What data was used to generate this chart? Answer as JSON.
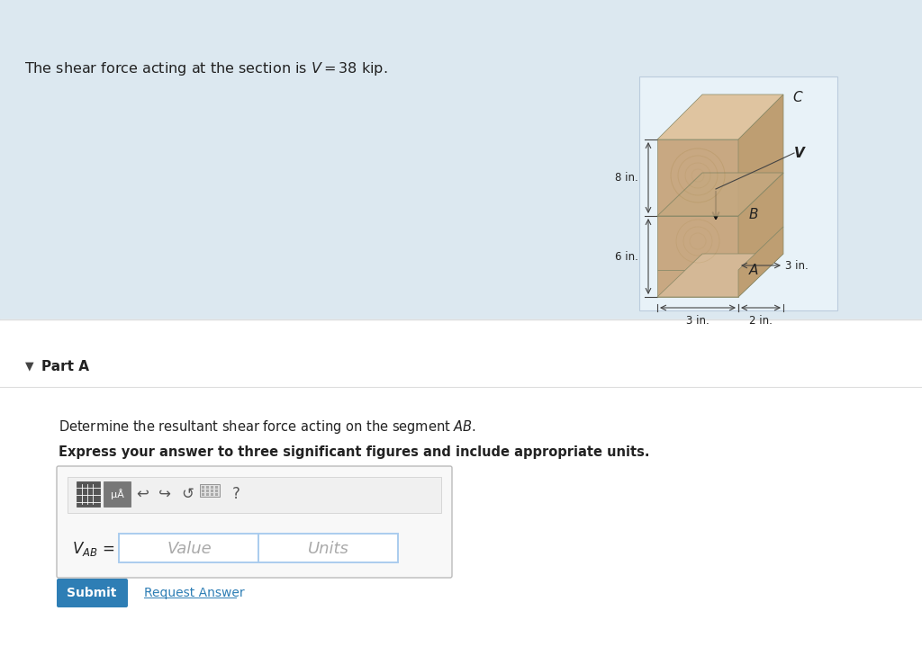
{
  "bg_top": "#dce8f0",
  "bg_bottom": "#ffffff",
  "title_text": "The shear force acting at the section is $V = 38$ kip.",
  "title_fontsize": 11.5,
  "part_a_label": "Part A",
  "part_a_fontsize": 11,
  "question_text": "Determine the resultant shear force acting on the segment $AB$.",
  "question_fontsize": 10.5,
  "bold_text": "Express your answer to three significant figures and include appropriate units.",
  "bold_fontsize": 10.5,
  "vab_label": "$V_{AB}$ =",
  "value_placeholder": "Value",
  "units_placeholder": "Units",
  "submit_text": "Submit",
  "request_answer_text": "Request Answer",
  "submit_bg": "#2e7eb5",
  "submit_fg": "#ffffff",
  "request_answer_color": "#2e7eb5",
  "dim_8in": "8 in.",
  "dim_6in": "6 in.",
  "dim_3in_bottom": "3 in.",
  "dim_3in_right": "3 in.",
  "dim_2in": "2 in.",
  "label_C": "C",
  "label_V": "V",
  "label_B": "B",
  "label_A": "A"
}
